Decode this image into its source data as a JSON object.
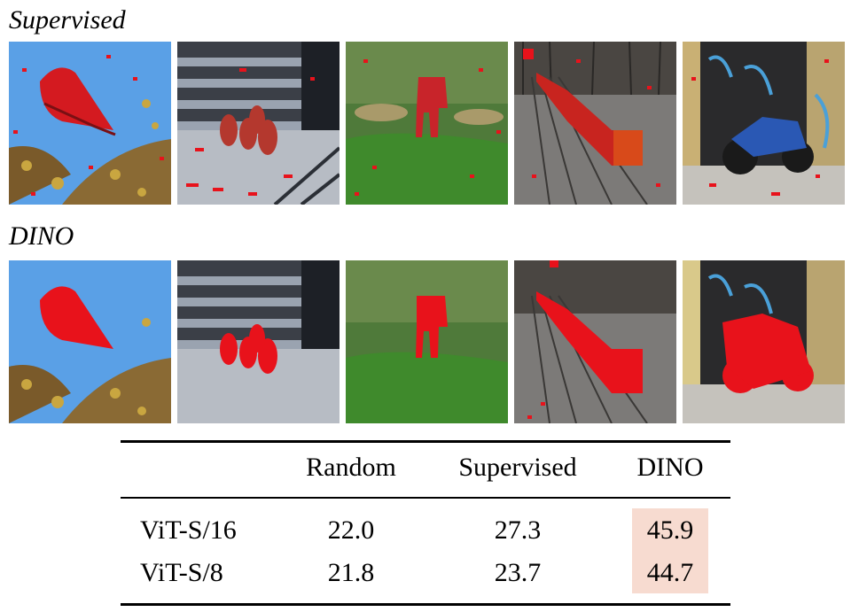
{
  "rows": {
    "supervised_label": "Supervised",
    "dino_label": "DINO"
  },
  "images": {
    "supervised": [
      "bird-mask-supervised",
      "ducks-mask-supervised",
      "elephant-mask-supervised",
      "train-mask-supervised",
      "motorbike-mask-supervised"
    ],
    "dino": [
      "bird-mask-dino",
      "ducks-mask-dino",
      "elephant-mask-dino",
      "train-mask-dino",
      "motorbike-mask-dino"
    ]
  },
  "colors": {
    "mask": "#e8121b",
    "highlight": "#f7dbd0"
  },
  "table": {
    "headers": [
      "",
      "Random",
      "Supervised",
      "DINO"
    ],
    "rows": [
      {
        "model": "ViT-S/16",
        "random": "22.0",
        "supervised": "27.3",
        "dino": "45.9"
      },
      {
        "model": "ViT-S/8",
        "random": "21.8",
        "supervised": "23.7",
        "dino": "44.7"
      }
    ]
  }
}
